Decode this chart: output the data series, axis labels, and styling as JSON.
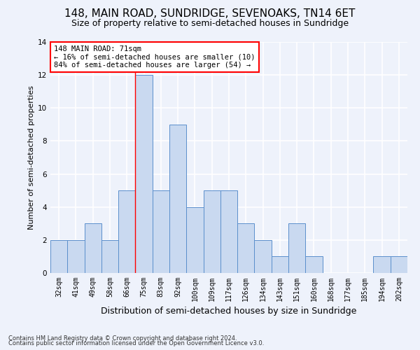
{
  "title": "148, MAIN ROAD, SUNDRIDGE, SEVENOAKS, TN14 6ET",
  "subtitle": "Size of property relative to semi-detached houses in Sundridge",
  "xlabel": "Distribution of semi-detached houses by size in Sundridge",
  "ylabel": "Number of semi-detached properties",
  "categories": [
    "32sqm",
    "41sqm",
    "49sqm",
    "58sqm",
    "66sqm",
    "75sqm",
    "83sqm",
    "92sqm",
    "100sqm",
    "109sqm",
    "117sqm",
    "126sqm",
    "134sqm",
    "143sqm",
    "151sqm",
    "160sqm",
    "168sqm",
    "177sqm",
    "185sqm",
    "194sqm",
    "202sqm"
  ],
  "values": [
    2,
    2,
    3,
    2,
    5,
    12,
    5,
    9,
    4,
    5,
    5,
    3,
    2,
    1,
    3,
    1,
    0,
    0,
    0,
    1,
    1
  ],
  "bar_color": "#c9d9f0",
  "bar_edge_color": "#5b8fcc",
  "ylim": [
    0,
    14
  ],
  "yticks": [
    0,
    2,
    4,
    6,
    8,
    10,
    12,
    14
  ],
  "vline_index": 4.5,
  "property_label": "148 MAIN ROAD: 71sqm",
  "pct_smaller": 16,
  "pct_larger": 84,
  "count_smaller": 10,
  "count_larger": 54,
  "footer_line1": "Contains HM Land Registry data © Crown copyright and database right 2024.",
  "footer_line2": "Contains public sector information licensed under the Open Government Licence v3.0.",
  "background_color": "#eef2fb",
  "grid_color": "#ffffff",
  "title_fontsize": 11,
  "subtitle_fontsize": 9,
  "xlabel_fontsize": 9,
  "ylabel_fontsize": 8,
  "tick_fontsize": 7,
  "ann_fontsize": 7.5,
  "footer_fontsize": 6
}
